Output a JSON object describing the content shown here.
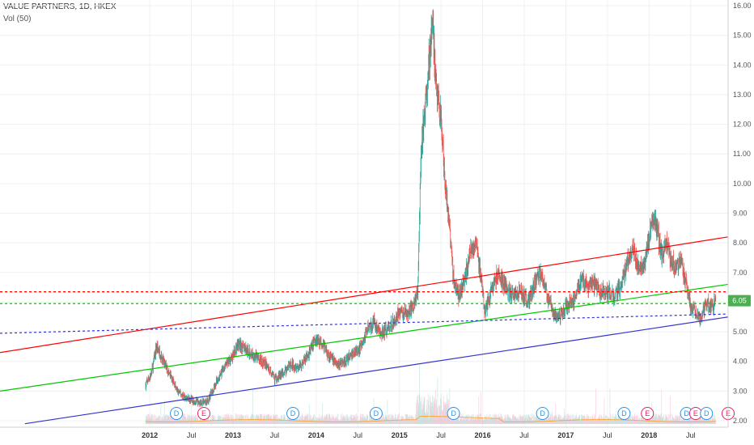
{
  "header": {
    "title": "VALUE PARTNERS, 1D, HKEX",
    "indicator": "Vol (50)"
  },
  "colors": {
    "up": "#26a69a",
    "down": "#ef5350",
    "red_line": "#ff0000",
    "green_line": "#00c800",
    "blue_line": "#3333cc",
    "last_price_bg": "#4caf50",
    "dividend": "#2196f3",
    "earnings": "#e91e63"
  },
  "chart_data": {
    "type": "candlestick",
    "title": "VALUE PARTNERS, 1D, HKEX",
    "yaxis": {
      "min": 1.8,
      "max": 16.2,
      "side": "right",
      "ticks": [
        "2.00",
        "3.00",
        "4.00",
        "5.00",
        "6.00",
        "7.00",
        "8.00",
        "9.00",
        "10.00",
        "11.00",
        "12.00",
        "13.00",
        "14.00",
        "15.00",
        "16.00"
      ]
    },
    "xaxis": {
      "ticks": [
        {
          "label": "2012",
          "x": 2012.0,
          "year": true
        },
        {
          "label": "Jul",
          "x": 2012.5
        },
        {
          "label": "2013",
          "x": 2013.0,
          "year": true
        },
        {
          "label": "Jul",
          "x": 2013.5
        },
        {
          "label": "2014",
          "x": 2014.0,
          "year": true
        },
        {
          "label": "Jul",
          "x": 2014.5
        },
        {
          "label": "2015",
          "x": 2015.0,
          "year": true
        },
        {
          "label": "Jul",
          "x": 2015.5
        },
        {
          "label": "2016",
          "x": 2016.0,
          "year": true
        },
        {
          "label": "Jul",
          "x": 2016.5
        },
        {
          "label": "2017",
          "x": 2017.0,
          "year": true
        },
        {
          "label": "Jul",
          "x": 2017.5
        },
        {
          "label": "2018",
          "x": 2018.0,
          "year": true
        },
        {
          "label": "Jul",
          "x": 2018.5
        }
      ]
    },
    "grid": true,
    "last_price": "6.05",
    "last_price_value": 6.05,
    "price_path": [
      [
        2011.95,
        3.2
      ],
      [
        2012.02,
        3.6
      ],
      [
        2012.08,
        4.5
      ],
      [
        2012.12,
        4.3
      ],
      [
        2012.18,
        3.9
      ],
      [
        2012.25,
        3.5
      ],
      [
        2012.33,
        3.0
      ],
      [
        2012.42,
        2.8
      ],
      [
        2012.5,
        2.7
      ],
      [
        2012.6,
        2.6
      ],
      [
        2012.7,
        2.7
      ],
      [
        2012.8,
        3.3
      ],
      [
        2012.9,
        3.8
      ],
      [
        2013.0,
        4.2
      ],
      [
        2013.06,
        4.6
      ],
      [
        2013.12,
        4.5
      ],
      [
        2013.2,
        4.3
      ],
      [
        2013.3,
        4.1
      ],
      [
        2013.4,
        3.9
      ],
      [
        2013.5,
        3.4
      ],
      [
        2013.6,
        3.6
      ],
      [
        2013.7,
        3.9
      ],
      [
        2013.8,
        3.8
      ],
      [
        2013.9,
        4.2
      ],
      [
        2014.0,
        4.8
      ],
      [
        2014.08,
        4.6
      ],
      [
        2014.15,
        4.2
      ],
      [
        2014.25,
        3.9
      ],
      [
        2014.35,
        4.0
      ],
      [
        2014.45,
        4.3
      ],
      [
        2014.55,
        4.5
      ],
      [
        2014.62,
        5.2
      ],
      [
        2014.7,
        5.3
      ],
      [
        2014.78,
        4.9
      ],
      [
        2014.86,
        5.1
      ],
      [
        2014.94,
        5.4
      ],
      [
        2015.0,
        5.7
      ],
      [
        2015.08,
        5.6
      ],
      [
        2015.15,
        5.8
      ],
      [
        2015.22,
        6.3
      ],
      [
        2015.26,
        11.0
      ],
      [
        2015.3,
        12.3
      ],
      [
        2015.35,
        14.0
      ],
      [
        2015.4,
        15.3
      ],
      [
        2015.45,
        13.0
      ],
      [
        2015.5,
        12.0
      ],
      [
        2015.55,
        10.0
      ],
      [
        2015.6,
        8.5
      ],
      [
        2015.65,
        6.8
      ],
      [
        2015.72,
        6.2
      ],
      [
        2015.8,
        7.0
      ],
      [
        2015.86,
        7.8
      ],
      [
        2015.92,
        8.1
      ],
      [
        2015.97,
        7.0
      ],
      [
        2016.03,
        5.6
      ],
      [
        2016.1,
        6.4
      ],
      [
        2016.18,
        6.9
      ],
      [
        2016.25,
        6.6
      ],
      [
        2016.35,
        6.2
      ],
      [
        2016.45,
        6.4
      ],
      [
        2016.55,
        6.0
      ],
      [
        2016.62,
        6.6
      ],
      [
        2016.7,
        7.0
      ],
      [
        2016.78,
        6.2
      ],
      [
        2016.86,
        5.6
      ],
      [
        2016.94,
        5.6
      ],
      [
        2017.02,
        5.9
      ],
      [
        2017.1,
        6.1
      ],
      [
        2017.18,
        6.8
      ],
      [
        2017.26,
        6.5
      ],
      [
        2017.34,
        6.6
      ],
      [
        2017.42,
        6.3
      ],
      [
        2017.5,
        6.4
      ],
      [
        2017.58,
        6.1
      ],
      [
        2017.66,
        6.6
      ],
      [
        2017.74,
        7.4
      ],
      [
        2017.82,
        7.8
      ],
      [
        2017.88,
        7.0
      ],
      [
        2017.94,
        7.3
      ],
      [
        2018.0,
        8.2
      ],
      [
        2018.05,
        8.9
      ],
      [
        2018.1,
        8.4
      ],
      [
        2018.15,
        7.6
      ],
      [
        2018.2,
        8.0
      ],
      [
        2018.26,
        7.5
      ],
      [
        2018.32,
        7.1
      ],
      [
        2018.38,
        7.3
      ],
      [
        2018.44,
        6.8
      ],
      [
        2018.5,
        5.9
      ],
      [
        2018.56,
        5.7
      ],
      [
        2018.62,
        5.4
      ],
      [
        2018.68,
        6.0
      ],
      [
        2018.74,
        5.8
      ],
      [
        2018.8,
        6.05
      ]
    ],
    "trendlines": [
      {
        "color": "red",
        "style": "solid",
        "from": [
          2010.2,
          4.3
        ],
        "to": [
          2018.95,
          8.2
        ]
      },
      {
        "color": "green",
        "style": "solid",
        "from": [
          2010.2,
          3.0
        ],
        "to": [
          2018.95,
          6.6
        ]
      },
      {
        "color": "blue",
        "style": "solid",
        "from": [
          2010.5,
          1.9
        ],
        "to": [
          2018.95,
          5.5
        ]
      },
      {
        "color": "red",
        "style": "dashed",
        "y": 6.35
      },
      {
        "color": "green",
        "style": "dashed",
        "y": 5.95
      },
      {
        "color": "blue",
        "style": "dashed",
        "from": [
          2010.2,
          4.95
        ],
        "to": [
          2018.95,
          5.6
        ]
      }
    ],
    "events": [
      {
        "label": "D",
        "type": "dividend",
        "x": 2012.32
      },
      {
        "label": "E",
        "type": "earnings",
        "x": 2012.65
      },
      {
        "label": "D",
        "type": "dividend",
        "x": 2013.72
      },
      {
        "label": "D",
        "type": "dividend",
        "x": 2014.72
      },
      {
        "label": "D",
        "type": "dividend",
        "x": 2015.65
      },
      {
        "label": "D",
        "type": "dividend",
        "x": 2016.72
      },
      {
        "label": "D",
        "type": "dividend",
        "x": 2017.7
      },
      {
        "label": "E",
        "type": "earnings",
        "x": 2017.98
      },
      {
        "label": "D",
        "type": "dividend",
        "x": 2018.45
      },
      {
        "label": "E",
        "type": "earnings",
        "x": 2018.56
      },
      {
        "label": "D",
        "type": "dividend",
        "x": 2018.69
      },
      {
        "label": "E",
        "type": "earnings",
        "x": 2018.95
      }
    ]
  }
}
